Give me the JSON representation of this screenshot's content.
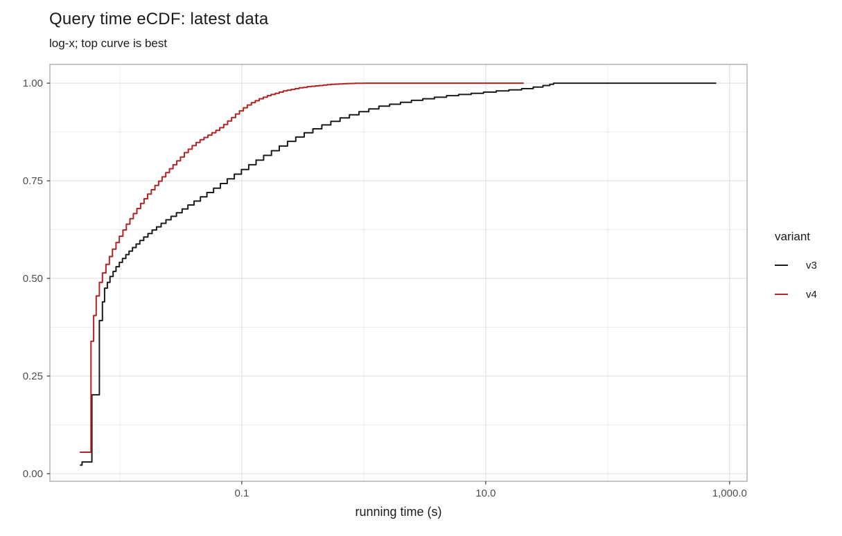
{
  "title": "Query time eCDF: latest data",
  "subtitle": "log-x; top curve is best",
  "chart_data": {
    "type": "line",
    "subtype": "ecdf-step-function",
    "title": "Query time eCDF: latest data",
    "subtitle": "log-x; top curve is best",
    "xlabel": "running time (s)",
    "ylabel": "",
    "x_scale": "log10",
    "grid": "on",
    "xlim": [
      0.00267,
      1390
    ],
    "ylim": [
      -0.0195,
      1.048
    ],
    "x_ticks": [
      {
        "value": 0.1,
        "label": "0.1"
      },
      {
        "value": 10,
        "label": "10.0"
      },
      {
        "value": 1000,
        "label": "1,000.0"
      }
    ],
    "x_minor": [
      0.01,
      1,
      100
    ],
    "y_ticks": [
      {
        "value": 0.0,
        "label": "0.00"
      },
      {
        "value": 0.25,
        "label": "0.25"
      },
      {
        "value": 0.5,
        "label": "0.50"
      },
      {
        "value": 0.75,
        "label": "0.75"
      },
      {
        "value": 1.0,
        "label": "1.00"
      }
    ],
    "y_minor": [
      0.125,
      0.375,
      0.625,
      0.875
    ],
    "legend": {
      "title": "variant",
      "position": "right",
      "items": [
        {
          "label": "v3",
          "color": "#1a1a1a"
        },
        {
          "label": "v4",
          "color": "#b22222"
        }
      ]
    },
    "colors": {
      "grid_major": "#e3e3e3",
      "grid_minor": "#ededed",
      "panel_border": "#a8a8a8",
      "tick_mark": "#333333",
      "tick_label": "#4d4d4d"
    },
    "series": [
      {
        "name": "v3",
        "color": "#1a1a1a",
        "points": [
          [
            0.0047,
            0.022
          ],
          [
            0.0049,
            0.03
          ],
          [
            0.0059,
            0.202
          ],
          [
            0.0068,
            0.392
          ],
          [
            0.0072,
            0.44
          ],
          [
            0.0075,
            0.475
          ],
          [
            0.0079,
            0.49
          ],
          [
            0.0083,
            0.505
          ],
          [
            0.0088,
            0.518
          ],
          [
            0.0093,
            0.53
          ],
          [
            0.0099,
            0.541
          ],
          [
            0.0105,
            0.551
          ],
          [
            0.0112,
            0.561
          ],
          [
            0.0119,
            0.57
          ],
          [
            0.0127,
            0.579
          ],
          [
            0.0136,
            0.588
          ],
          [
            0.0146,
            0.597
          ],
          [
            0.0157,
            0.606
          ],
          [
            0.017,
            0.615
          ],
          [
            0.0184,
            0.624
          ],
          [
            0.02,
            0.632
          ],
          [
            0.0218,
            0.641
          ],
          [
            0.0239,
            0.65
          ],
          [
            0.0263,
            0.659
          ],
          [
            0.0291,
            0.668
          ],
          [
            0.0324,
            0.678
          ],
          [
            0.0362,
            0.688
          ],
          [
            0.0406,
            0.698
          ],
          [
            0.0458,
            0.709
          ],
          [
            0.0518,
            0.72
          ],
          [
            0.0587,
            0.731
          ],
          [
            0.0667,
            0.743
          ],
          [
            0.076,
            0.755
          ],
          [
            0.0868,
            0.767
          ],
          [
            0.0993,
            0.779
          ],
          [
            0.114,
            0.791
          ],
          [
            0.131,
            0.803
          ],
          [
            0.151,
            0.815
          ],
          [
            0.175,
            0.827
          ],
          [
            0.203,
            0.839
          ],
          [
            0.237,
            0.851
          ],
          [
            0.277,
            0.862
          ],
          [
            0.325,
            0.873
          ],
          [
            0.383,
            0.883
          ],
          [
            0.453,
            0.893
          ],
          [
            0.537,
            0.902
          ],
          [
            0.639,
            0.911
          ],
          [
            0.763,
            0.919
          ],
          [
            0.914,
            0.927
          ],
          [
            1.1,
            0.934
          ],
          [
            1.33,
            0.941
          ],
          [
            1.63,
            0.946
          ],
          [
            2.0,
            0.951
          ],
          [
            2.46,
            0.956
          ],
          [
            3.05,
            0.96
          ],
          [
            3.8,
            0.964
          ],
          [
            4.77,
            0.968
          ],
          [
            6.0,
            0.971
          ],
          [
            7.6,
            0.974
          ],
          [
            9.6,
            0.977
          ],
          [
            12.2,
            0.98
          ],
          [
            15.5,
            0.983
          ],
          [
            19.7,
            0.986
          ],
          [
            24.5,
            0.99
          ],
          [
            29.5,
            0.994
          ],
          [
            33.5,
            0.997
          ],
          [
            36.0,
            1.0
          ],
          [
            775,
            1.0
          ]
        ]
      },
      {
        "name": "v4",
        "color": "#b22222",
        "points": [
          [
            0.0047,
            0.055
          ],
          [
            0.0058,
            0.339
          ],
          [
            0.0061,
            0.405
          ],
          [
            0.0064,
            0.455
          ],
          [
            0.0068,
            0.49
          ],
          [
            0.0072,
            0.514
          ],
          [
            0.0077,
            0.536
          ],
          [
            0.0082,
            0.556
          ],
          [
            0.0087,
            0.575
          ],
          [
            0.0093,
            0.592
          ],
          [
            0.0099,
            0.608
          ],
          [
            0.0106,
            0.624
          ],
          [
            0.0113,
            0.639
          ],
          [
            0.0121,
            0.653
          ],
          [
            0.0129,
            0.666
          ],
          [
            0.0138,
            0.679
          ],
          [
            0.0148,
            0.692
          ],
          [
            0.0158,
            0.704
          ],
          [
            0.0169,
            0.716
          ],
          [
            0.0181,
            0.727
          ],
          [
            0.0194,
            0.738
          ],
          [
            0.0208,
            0.749
          ],
          [
            0.0222,
            0.76
          ],
          [
            0.0238,
            0.771
          ],
          [
            0.0255,
            0.781
          ],
          [
            0.0273,
            0.791
          ],
          [
            0.0293,
            0.801
          ],
          [
            0.0314,
            0.811
          ],
          [
            0.0338,
            0.822
          ],
          [
            0.0364,
            0.831
          ],
          [
            0.0392,
            0.84
          ],
          [
            0.0422,
            0.848
          ],
          [
            0.0455,
            0.855
          ],
          [
            0.049,
            0.861
          ],
          [
            0.0528,
            0.867
          ],
          [
            0.0569,
            0.873
          ],
          [
            0.0613,
            0.879
          ],
          [
            0.066,
            0.886
          ],
          [
            0.0711,
            0.894
          ],
          [
            0.0766,
            0.903
          ],
          [
            0.0825,
            0.912
          ],
          [
            0.0889,
            0.921
          ],
          [
            0.0957,
            0.929
          ],
          [
            0.103,
            0.937
          ],
          [
            0.111,
            0.944
          ],
          [
            0.12,
            0.95
          ],
          [
            0.129,
            0.955
          ],
          [
            0.139,
            0.96
          ],
          [
            0.15,
            0.964
          ],
          [
            0.162,
            0.968
          ],
          [
            0.174,
            0.971
          ],
          [
            0.188,
            0.974
          ],
          [
            0.203,
            0.977
          ],
          [
            0.219,
            0.98
          ],
          [
            0.236,
            0.982
          ],
          [
            0.254,
            0.984
          ],
          [
            0.274,
            0.986
          ],
          [
            0.296,
            0.988
          ],
          [
            0.319,
            0.989
          ],
          [
            0.344,
            0.991
          ],
          [
            0.371,
            0.992
          ],
          [
            0.4,
            0.993
          ],
          [
            0.431,
            0.994
          ],
          [
            0.465,
            0.995
          ],
          [
            0.501,
            0.996
          ],
          [
            0.54,
            0.997
          ],
          [
            0.583,
            0.9975
          ],
          [
            0.628,
            0.998
          ],
          [
            0.677,
            0.9985
          ],
          [
            0.73,
            0.999
          ],
          [
            0.787,
            0.9993
          ],
          [
            0.849,
            0.9996
          ],
          [
            0.915,
            0.9998
          ],
          [
            0.99,
            1.0
          ],
          [
            20.5,
            1.0
          ]
        ]
      }
    ]
  }
}
